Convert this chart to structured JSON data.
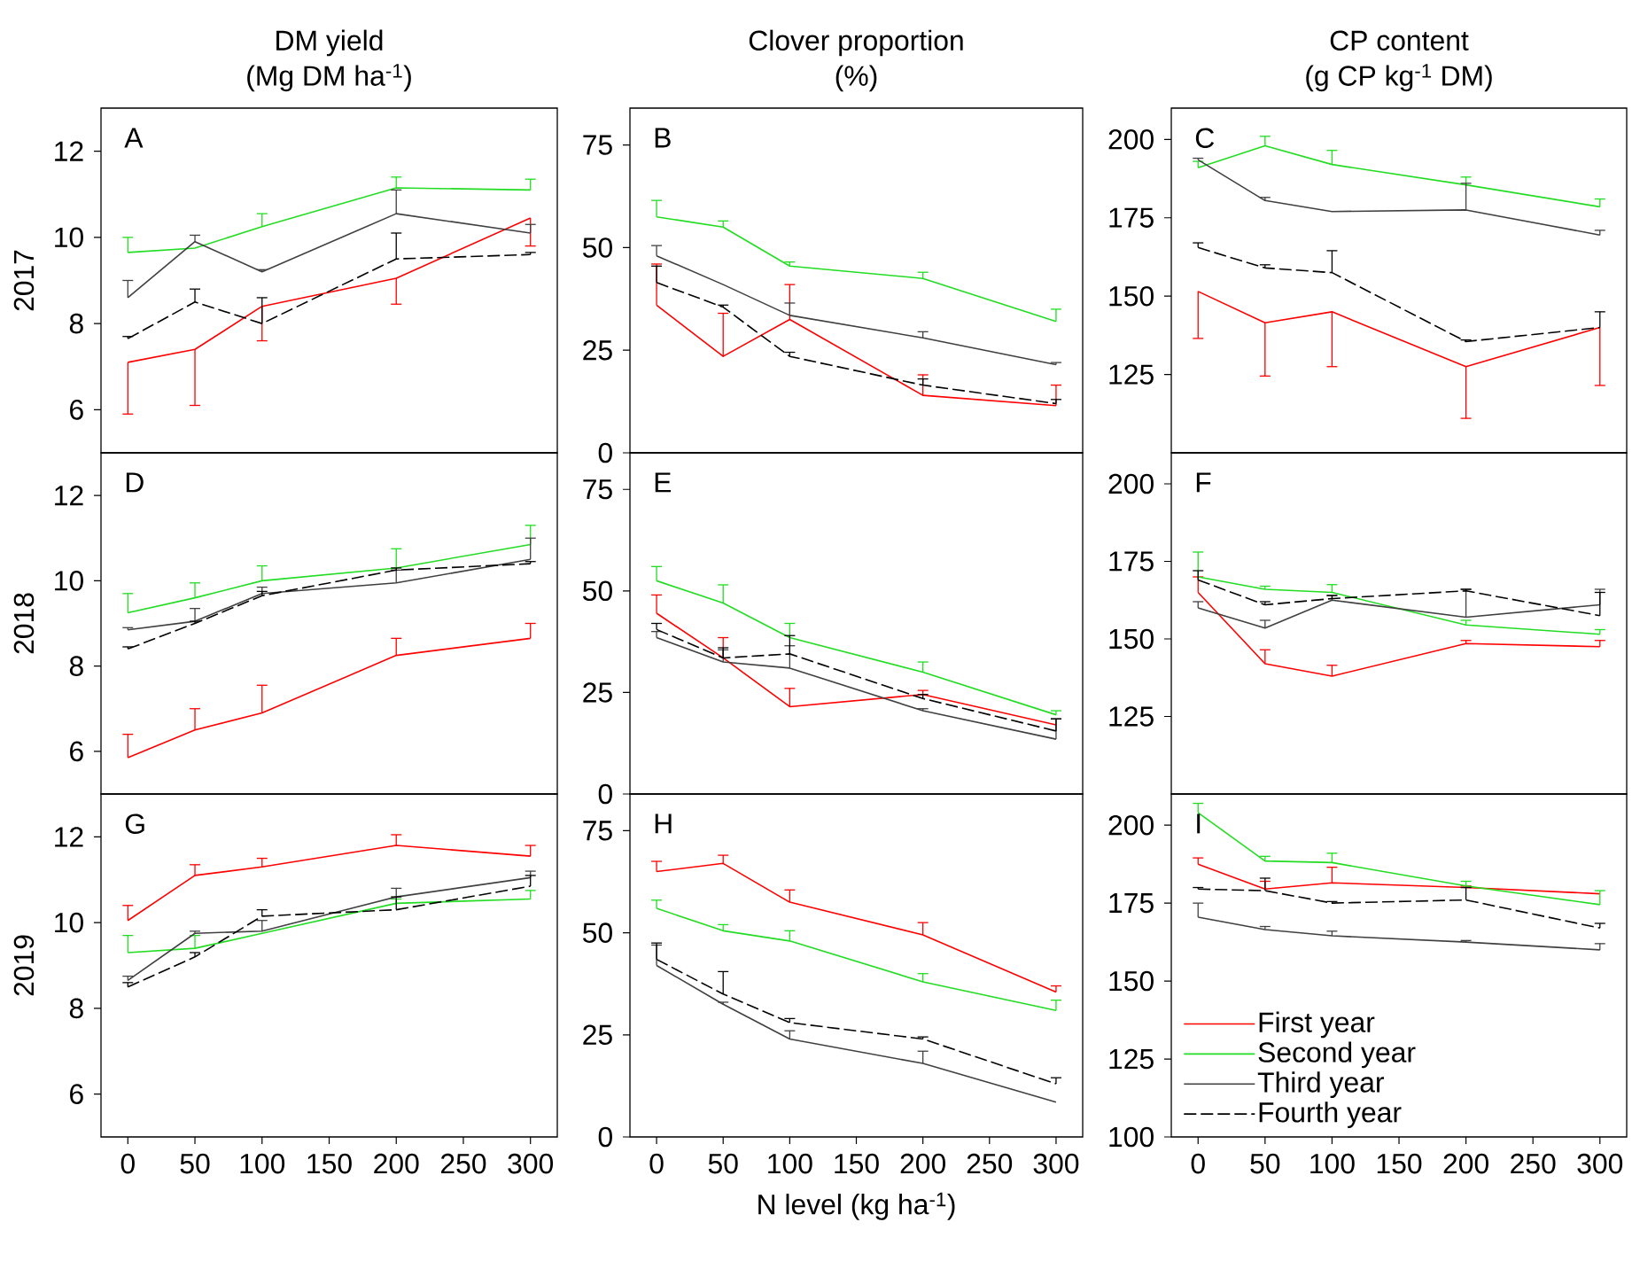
{
  "chart_data": [
    {
      "type": "line",
      "title": "DM yield",
      "subtitle": "(Mg DM ha$^{-1}$)",
      "ylabel": "2017",
      "annotations": [
        "A"
      ],
      "x": [
        0,
        50,
        100,
        200,
        300
      ],
      "xlim": [
        -20,
        320
      ],
      "ylim": [
        5,
        13
      ],
      "yticks": [
        6,
        8,
        10,
        12
      ],
      "tick_labels": "y",
      "series": [
        {
          "color": "#ff0000",
          "values": [
            7.1,
            7.4,
            8.4,
            9.05,
            10.45
          ],
          "errors": [
            [
              5.9,
              7.1
            ],
            [
              6.1,
              7.4
            ],
            [
              7.6,
              8.4
            ],
            [
              8.45,
              9.05
            ],
            [
              9.8,
              10.45
            ]
          ]
        },
        {
          "color": "#22dd22",
          "values": [
            9.65,
            9.75,
            10.25,
            11.15,
            11.1
          ],
          "errors": [
            [
              9.65,
              10.0
            ],
            null,
            [
              10.25,
              10.55
            ],
            [
              11.15,
              11.4
            ],
            [
              11.1,
              11.35
            ]
          ]
        },
        {
          "color": "#404040",
          "values": [
            8.6,
            9.9,
            9.2,
            10.55,
            10.1
          ],
          "errors": [
            [
              8.6,
              9.0
            ],
            [
              9.9,
              10.05
            ],
            [
              9.2,
              9.25
            ],
            [
              10.55,
              11.1
            ],
            [
              10.1,
              10.3
            ]
          ]
        },
        {
          "color": "#000000",
          "line_style": "dashed",
          "values": [
            7.65,
            8.5,
            8.0,
            9.5,
            9.6
          ],
          "errors": [
            [
              7.65,
              7.7
            ],
            [
              8.5,
              8.8
            ],
            [
              8.0,
              8.6
            ],
            [
              9.5,
              10.1
            ],
            [
              9.6,
              9.65
            ]
          ]
        }
      ]
    },
    {
      "type": "line",
      "title": "Clover proportion",
      "subtitle": "(%)",
      "annotations": [
        "B"
      ],
      "x": [
        0,
        50,
        100,
        200,
        300
      ],
      "xlim": [
        -20,
        320
      ],
      "ylim": [
        0,
        84
      ],
      "yticks": [
        0,
        25,
        50,
        75
      ],
      "tick_labels": "y",
      "series": [
        {
          "color": "#ff0000",
          "values": [
            36,
            23.5,
            32.5,
            14,
            11.5
          ],
          "errors": [
            [
              36,
              46
            ],
            [
              23.5,
              34
            ],
            [
              32.5,
              41
            ],
            [
              14,
              19
            ],
            [
              11.5,
              16.5
            ]
          ]
        },
        {
          "color": "#22dd22",
          "values": [
            57.5,
            55,
            45.5,
            42.5,
            32
          ],
          "errors": [
            [
              57.5,
              61.5
            ],
            [
              55,
              56.5
            ],
            [
              45.5,
              46.5
            ],
            [
              42.5,
              44
            ],
            [
              32,
              35
            ]
          ]
        },
        {
          "color": "#404040",
          "values": [
            48,
            41,
            33.5,
            28,
            21.5
          ],
          "errors": [
            [
              48,
              50.5
            ],
            null,
            [
              33.5,
              36.5
            ],
            [
              28,
              29.5
            ],
            [
              21.5,
              22
            ]
          ]
        },
        {
          "color": "#000000",
          "line_style": "dashed",
          "values": [
            41.5,
            35.5,
            23.5,
            16.5,
            12
          ],
          "errors": [
            [
              41.5,
              45.5
            ],
            [
              35.5,
              36
            ],
            [
              23.5,
              24.5
            ],
            [
              16.5,
              18
            ],
            [
              12,
              13
            ]
          ]
        }
      ]
    },
    {
      "type": "line",
      "title": "CP content",
      "subtitle": "(g CP kg$^{-1}$ DM)",
      "annotations": [
        "C"
      ],
      "x": [
        0,
        50,
        100,
        200,
        300
      ],
      "xlim": [
        -20,
        320
      ],
      "ylim": [
        100,
        210
      ],
      "yticks": [
        125,
        150,
        175,
        200
      ],
      "tick_labels": "y",
      "series": [
        {
          "color": "#ff0000",
          "values": [
            151.5,
            141.5,
            145,
            127.5,
            140
          ],
          "errors": [
            [
              136.5,
              151.5
            ],
            [
              124.5,
              141.5
            ],
            [
              127.5,
              145
            ],
            [
              111,
              127.5
            ],
            [
              121.5,
              140
            ]
          ]
        },
        {
          "color": "#22dd22",
          "values": [
            191,
            198,
            192,
            185.5,
            178.5
          ],
          "errors": [
            [
              191,
              193
            ],
            [
              198,
              201
            ],
            [
              192,
              196.5
            ],
            [
              185.5,
              188
            ],
            [
              178.5,
              181
            ]
          ]
        },
        {
          "color": "#404040",
          "values": [
            193.5,
            180.5,
            177,
            177.5,
            169.5
          ],
          "errors": [
            [
              193.5,
              194
            ],
            [
              180.5,
              181.5
            ],
            null,
            [
              177.5,
              186
            ],
            [
              169.5,
              171
            ]
          ]
        },
        {
          "color": "#000000",
          "line_style": "dashed",
          "values": [
            165.5,
            159,
            157.5,
            135.5,
            140
          ],
          "errors": [
            [
              165.5,
              167
            ],
            [
              159,
              160
            ],
            [
              157.5,
              164.5
            ],
            [
              135.5,
              136
            ],
            [
              140,
              145
            ]
          ]
        }
      ]
    },
    {
      "type": "line",
      "ylabel": "2018",
      "annotations": [
        "D"
      ],
      "x": [
        0,
        50,
        100,
        200,
        300
      ],
      "xlim": [
        -20,
        320
      ],
      "ylim": [
        5,
        13
      ],
      "yticks": [
        6,
        8,
        10,
        12
      ],
      "tick_labels": "y",
      "series": [
        {
          "color": "#ff0000",
          "values": [
            5.85,
            6.5,
            6.9,
            8.25,
            8.65
          ],
          "errors": [
            [
              5.85,
              6.4
            ],
            [
              6.5,
              7.0
            ],
            [
              6.9,
              7.55
            ],
            [
              8.25,
              8.65
            ],
            [
              8.65,
              9.0
            ]
          ]
        },
        {
          "color": "#22dd22",
          "values": [
            9.25,
            9.6,
            10.0,
            10.3,
            10.85
          ],
          "errors": [
            [
              9.25,
              9.7
            ],
            [
              9.6,
              9.95
            ],
            [
              10.0,
              10.35
            ],
            [
              10.3,
              10.75
            ],
            [
              10.85,
              11.3
            ]
          ]
        },
        {
          "color": "#404040",
          "values": [
            8.85,
            9.05,
            9.7,
            9.95,
            10.5
          ],
          "errors": [
            [
              8.85,
              8.9
            ],
            [
              9.05,
              9.35
            ],
            [
              9.7,
              9.85
            ],
            [
              9.95,
              10.25
            ],
            [
              10.5,
              11.0
            ]
          ]
        },
        {
          "color": "#000000",
          "line_style": "dashed",
          "values": [
            8.4,
            9.0,
            9.65,
            10.25,
            10.4
          ],
          "errors": [
            [
              8.4,
              8.45
            ],
            [
              9.0,
              9.05
            ],
            [
              9.65,
              9.75
            ],
            [
              10.25,
              10.3
            ],
            [
              10.4,
              10.45
            ]
          ]
        }
      ]
    },
    {
      "type": "line",
      "annotations": [
        "E"
      ],
      "x": [
        0,
        50,
        100,
        200,
        300
      ],
      "xlim": [
        -20,
        320
      ],
      "ylim": [
        0,
        84
      ],
      "yticks": [
        0,
        25,
        50,
        75
      ],
      "tick_labels": "y",
      "series": [
        {
          "color": "#ff0000",
          "values": [
            44.5,
            33.5,
            21.5,
            24.5,
            17
          ],
          "errors": [
            [
              44.5,
              49
            ],
            [
              33.5,
              38.5
            ],
            [
              21.5,
              26
            ],
            [
              24.5,
              25.5
            ],
            null
          ]
        },
        {
          "color": "#22dd22",
          "values": [
            52.5,
            47,
            38.5,
            30,
            19.5
          ],
          "errors": [
            [
              52.5,
              56
            ],
            [
              47,
              51.5
            ],
            [
              38.5,
              42
            ],
            [
              30,
              32.5
            ],
            [
              19.5,
              20.5
            ]
          ]
        },
        {
          "color": "#404040",
          "values": [
            38.5,
            32.5,
            31,
            20.5,
            13.5
          ],
          "errors": [
            [
              38.5,
              40
            ],
            [
              32.5,
              35.5
            ],
            [
              31,
              36.5
            ],
            [
              20.5,
              21
            ],
            [
              13.5,
              18.5
            ]
          ]
        },
        {
          "color": "#000000",
          "line_style": "dashed",
          "values": [
            40.5,
            33.5,
            34.5,
            23.5,
            15.5
          ],
          "errors": [
            [
              40.5,
              42
            ],
            [
              33.5,
              36
            ],
            [
              34.5,
              39
            ],
            [
              23.5,
              24.5
            ],
            [
              15.5,
              18.5
            ]
          ]
        }
      ]
    },
    {
      "type": "line",
      "annotations": [
        "F"
      ],
      "x": [
        0,
        50,
        100,
        200,
        300
      ],
      "xlim": [
        -20,
        320
      ],
      "ylim": [
        100,
        210
      ],
      "yticks": [
        125,
        150,
        175,
        200
      ],
      "tick_labels": "y",
      "series": [
        {
          "color": "#ff0000",
          "values": [
            165,
            142,
            138,
            148.5,
            147.5
          ],
          "errors": [
            [
              165,
              170
            ],
            [
              142,
              146.5
            ],
            [
              138,
              141.5
            ],
            [
              148.5,
              149.5
            ],
            [
              147.5,
              149.5
            ]
          ]
        },
        {
          "color": "#22dd22",
          "values": [
            170,
            166,
            165,
            154.5,
            151.5
          ],
          "errors": [
            [
              170,
              178
            ],
            [
              166,
              167
            ],
            [
              165,
              167.5
            ],
            [
              154.5,
              156
            ],
            [
              151.5,
              153
            ]
          ]
        },
        {
          "color": "#404040",
          "values": [
            160,
            153.5,
            162.5,
            157,
            161
          ],
          "errors": [
            [
              160,
              162
            ],
            [
              153.5,
              156
            ],
            [
              162.5,
              164
            ],
            [
              157,
              166
            ],
            [
              161,
              166
            ]
          ]
        },
        {
          "color": "#000000",
          "line_style": "dashed",
          "values": [
            169,
            161,
            163,
            165.5,
            157.5
          ],
          "errors": [
            [
              169,
              172
            ],
            [
              161,
              162
            ],
            [
              163,
              164
            ],
            [
              165.5,
              166
            ],
            [
              157.5,
              165
            ]
          ]
        }
      ]
    },
    {
      "type": "line",
      "ylabel": "2019",
      "annotations": [
        "G"
      ],
      "x": [
        0,
        50,
        100,
        200,
        300
      ],
      "xlim": [
        -20,
        320
      ],
      "ylim": [
        5,
        13
      ],
      "xticks": [
        0,
        50,
        100,
        150,
        200,
        250,
        300
      ],
      "yticks": [
        6,
        8,
        10,
        12
      ],
      "series": [
        {
          "color": "#ff0000",
          "values": [
            10.05,
            11.1,
            11.3,
            11.8,
            11.55
          ],
          "errors": [
            [
              10.05,
              10.4
            ],
            [
              11.1,
              11.35
            ],
            [
              11.3,
              11.5
            ],
            [
              11.8,
              12.05
            ],
            [
              11.55,
              11.8
            ]
          ]
        },
        {
          "color": "#22dd22",
          "values": [
            9.3,
            9.4,
            9.75,
            10.45,
            10.55
          ],
          "errors": [
            [
              9.3,
              9.7
            ],
            [
              9.4,
              9.7
            ],
            null,
            [
              10.45,
              10.55
            ],
            [
              10.55,
              10.75
            ]
          ]
        },
        {
          "color": "#404040",
          "values": [
            8.65,
            9.75,
            9.8,
            10.6,
            11.05
          ],
          "errors": [
            [
              8.65,
              8.75
            ],
            [
              9.75,
              9.8
            ],
            [
              9.8,
              10.05
            ],
            [
              10.6,
              10.8
            ],
            [
              11.05,
              11.2
            ]
          ]
        },
        {
          "color": "#000000",
          "line_style": "dashed",
          "values": [
            8.5,
            9.2,
            10.15,
            10.3,
            10.85
          ],
          "errors": [
            [
              8.5,
              8.6
            ],
            [
              9.2,
              9.3
            ],
            [
              10.15,
              10.3
            ],
            [
              10.3,
              10.6
            ],
            [
              10.85,
              11.1
            ]
          ]
        }
      ]
    },
    {
      "type": "line",
      "xlabel": "N level (kg ha$^{-1}$)",
      "annotations": [
        "H"
      ],
      "x": [
        0,
        50,
        100,
        200,
        300
      ],
      "xlim": [
        -20,
        320
      ],
      "ylim": [
        0,
        84
      ],
      "xticks": [
        0,
        50,
        100,
        150,
        200,
        250,
        300
      ],
      "yticks": [
        0,
        25,
        50,
        75
      ],
      "series": [
        {
          "color": "#ff0000",
          "values": [
            65,
            67,
            57.5,
            49.5,
            35.5
          ],
          "errors": [
            [
              65,
              67.5
            ],
            [
              67,
              69
            ],
            [
              57.5,
              60.5
            ],
            [
              49.5,
              52.5
            ],
            [
              35.5,
              37
            ]
          ]
        },
        {
          "color": "#22dd22",
          "values": [
            56,
            50.5,
            48,
            38,
            31
          ],
          "errors": [
            [
              56,
              58
            ],
            [
              50.5,
              52
            ],
            [
              48,
              50.5
            ],
            [
              38,
              40
            ],
            [
              31,
              33.5
            ]
          ]
        },
        {
          "color": "#404040",
          "values": [
            42,
            32.5,
            24,
            18,
            8.5
          ],
          "errors": [
            [
              42,
              47
            ],
            [
              32.5,
              33
            ],
            [
              24,
              26
            ],
            [
              18,
              21
            ],
            null
          ]
        },
        {
          "color": "#000000",
          "line_style": "dashed",
          "values": [
            43.5,
            35,
            28,
            24,
            13
          ],
          "errors": [
            [
              43.5,
              47.5
            ],
            [
              35,
              40.5
            ],
            [
              28,
              29
            ],
            [
              24,
              24.5
            ],
            [
              13,
              14.5
            ]
          ]
        }
      ]
    },
    {
      "type": "line",
      "annotations": [
        "I"
      ],
      "legend": "bottom left",
      "x": [
        0,
        50,
        100,
        200,
        300
      ],
      "xlim": [
        -20,
        320
      ],
      "ylim": [
        100,
        210
      ],
      "xticks": [
        0,
        50,
        100,
        150,
        200,
        250,
        300
      ],
      "yticks": [
        100,
        125,
        150,
        175,
        200
      ],
      "series": [
        {
          "name": "First year",
          "color": "#ff0000",
          "values": [
            187.5,
            179.5,
            181.5,
            180,
            178
          ],
          "errors": [
            [
              187.5,
              189.5
            ],
            [
              179.5,
              182
            ],
            [
              181.5,
              186.5
            ],
            [
              180,
              180.5
            ],
            null
          ]
        },
        {
          "name": "Second year",
          "color": "#22dd22",
          "values": [
            204,
            188.5,
            188,
            180.5,
            174.5
          ],
          "errors": [
            [
              204,
              207
            ],
            [
              188.5,
              190
            ],
            [
              188,
              191
            ],
            [
              180.5,
              182
            ],
            [
              174.5,
              179
            ]
          ]
        },
        {
          "name": "Third year",
          "color": "#404040",
          "values": [
            170.5,
            166.5,
            164.5,
            162.5,
            160
          ],
          "errors": [
            [
              170.5,
              175
            ],
            [
              166.5,
              167.5
            ],
            [
              164.5,
              166
            ],
            [
              162.5,
              163
            ],
            [
              160,
              162
            ]
          ]
        },
        {
          "name": "Fourth year",
          "color": "#000000",
          "line_style": "dashed",
          "values": [
            179.5,
            179,
            175,
            176,
            167
          ],
          "errors": [
            [
              179.5,
              180
            ],
            [
              179,
              183
            ],
            [
              175,
              175.5
            ],
            [
              176,
              180
            ],
            [
              167,
              168.5
            ]
          ]
        }
      ]
    }
  ]
}
